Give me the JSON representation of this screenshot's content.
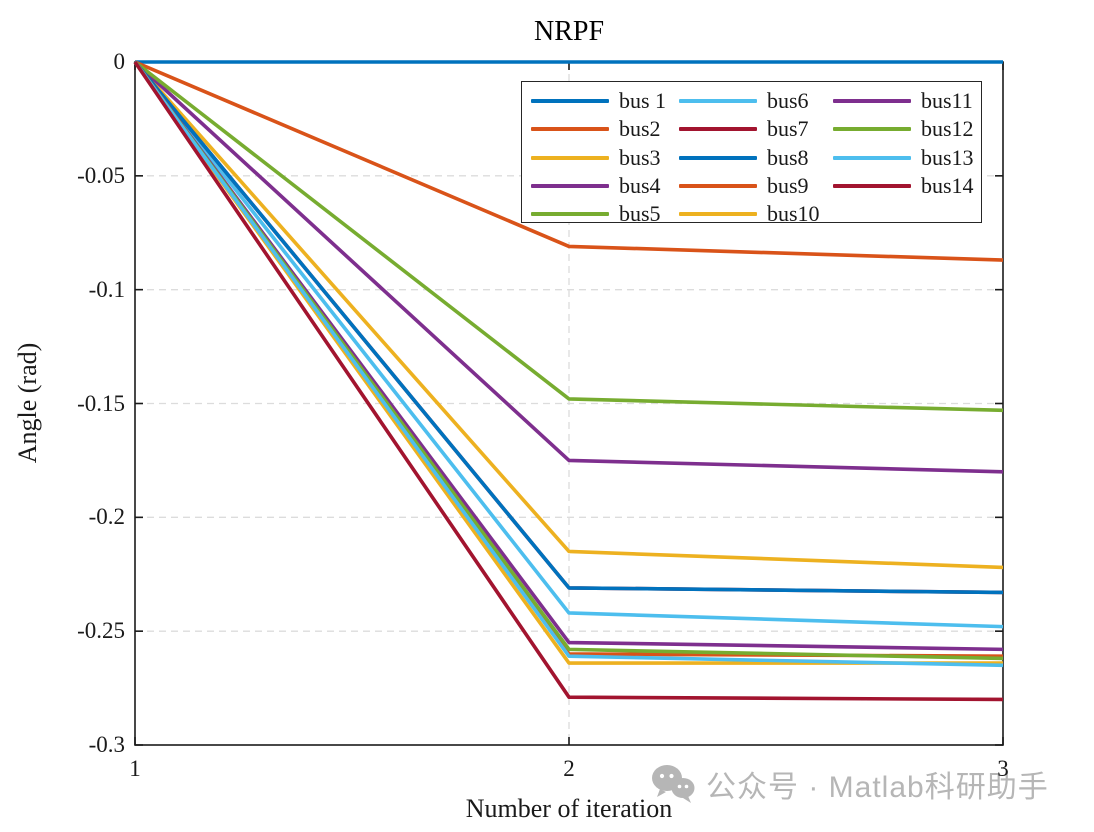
{
  "chart_data": {
    "type": "line",
    "title": "NRPF",
    "xlabel": "Number of iteration",
    "ylabel": "Angle (rad)",
    "x": [
      1,
      2,
      3
    ],
    "xlim": [
      1,
      3
    ],
    "ylim": [
      -0.3,
      0
    ],
    "x_ticks": [
      1,
      2,
      3
    ],
    "x_tick_labels": [
      "1",
      "2",
      "3"
    ],
    "y_ticks": [
      0,
      -0.05,
      -0.1,
      -0.15,
      -0.2,
      -0.25,
      -0.3
    ],
    "y_tick_labels": [
      "0",
      "-0.05",
      "-0.1",
      "-0.15",
      "-0.2",
      "-0.25",
      "-0.3"
    ],
    "grid": "on-dashed",
    "legend_position": "upper-center-inside, 3 columns, column-major",
    "series": [
      {
        "name": "bus 1",
        "color": "#0072BD",
        "values": [
          0,
          0.0,
          0.0
        ]
      },
      {
        "name": "bus2",
        "color": "#D95319",
        "values": [
          0,
          -0.081,
          -0.087
        ]
      },
      {
        "name": "bus3",
        "color": "#EDB120",
        "values": [
          0,
          -0.215,
          -0.222
        ]
      },
      {
        "name": "bus4",
        "color": "#7E2F8E",
        "values": [
          0,
          -0.175,
          -0.18
        ]
      },
      {
        "name": "bus5",
        "color": "#77AC30",
        "values": [
          0,
          -0.148,
          -0.153
        ]
      },
      {
        "name": "bus6",
        "color": "#4DBEEE",
        "values": [
          0,
          -0.242,
          -0.248
        ]
      },
      {
        "name": "bus7",
        "color": "#A2142F",
        "values": [
          0,
          -0.231,
          -0.233
        ]
      },
      {
        "name": "bus8",
        "color": "#0072BD",
        "values": [
          0,
          -0.231,
          -0.233
        ]
      },
      {
        "name": "bus9",
        "color": "#D95319",
        "values": [
          0,
          -0.26,
          -0.261
        ]
      },
      {
        "name": "bus10",
        "color": "#EDB120",
        "values": [
          0,
          -0.264,
          -0.264
        ]
      },
      {
        "name": "bus11",
        "color": "#7E2F8E",
        "values": [
          0,
          -0.255,
          -0.258
        ]
      },
      {
        "name": "bus12",
        "color": "#77AC30",
        "values": [
          0,
          -0.258,
          -0.262
        ]
      },
      {
        "name": "bus13",
        "color": "#4DBEEE",
        "values": [
          0,
          -0.261,
          -0.265
        ]
      },
      {
        "name": "bus14",
        "color": "#A2142F",
        "values": [
          0,
          -0.279,
          -0.28
        ]
      }
    ]
  },
  "watermark": {
    "icon": "wechat-icon",
    "text": "公众号 · Matlab科研助手",
    "color": "#b6b6b6"
  },
  "colors": {
    "axis": "#1a1a1a",
    "grid": "#dcdcdc",
    "background": "#ffffff"
  }
}
